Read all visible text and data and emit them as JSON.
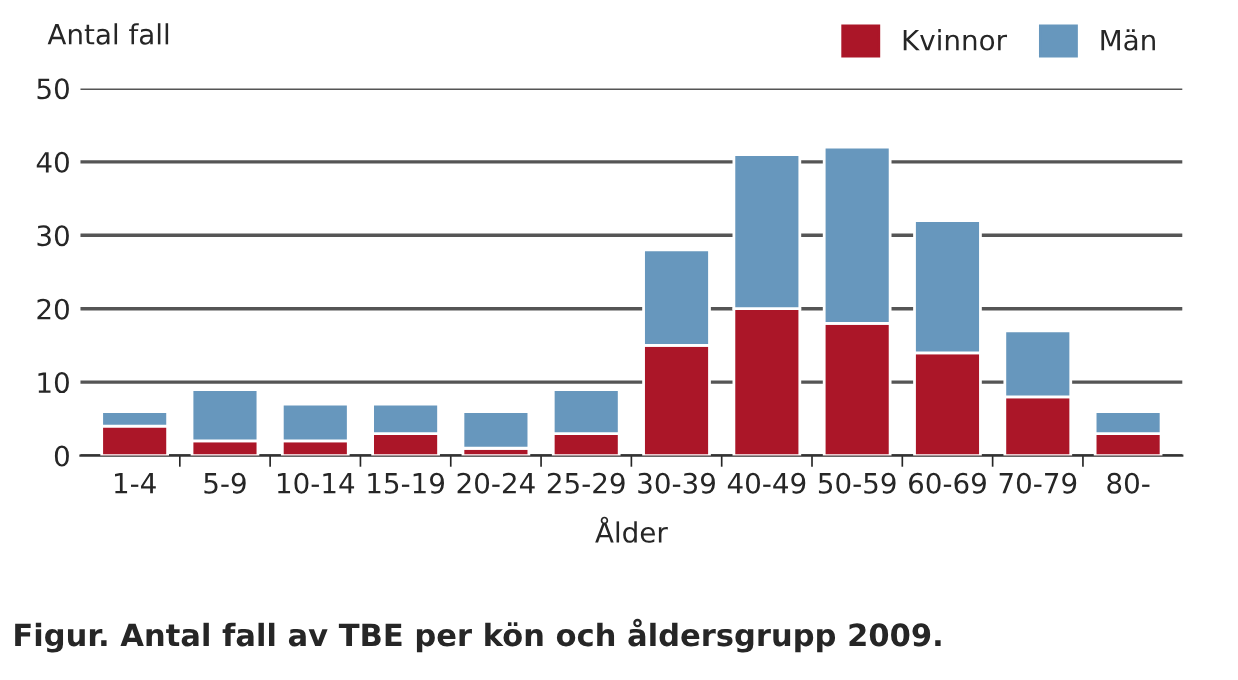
{
  "chart_data": {
    "type": "bar",
    "stacked": true,
    "ylabel": "Antal fall",
    "xlabel": "Ålder",
    "categories": [
      "1-4",
      "5-9",
      "10-14",
      "15-19",
      "20-24",
      "25-29",
      "30-39",
      "40-49",
      "50-59",
      "60-69",
      "70-79",
      "80-"
    ],
    "series": [
      {
        "name": "Kvinnor",
        "color": "#ab1628",
        "values": [
          4,
          2,
          2,
          3,
          1,
          3,
          15,
          20,
          18,
          14,
          8,
          3
        ]
      },
      {
        "name": "Män",
        "color": "#6797bd",
        "values": [
          2,
          7,
          5,
          4,
          5,
          6,
          13,
          21,
          24,
          18,
          9,
          3
        ]
      }
    ],
    "ylim": [
      0,
      50
    ],
    "yticks": [
      0,
      10,
      20,
      30,
      40,
      50
    ],
    "grid": "y",
    "legend": "top right",
    "annotations": [
      "Figur. Antal fall av TBE per kön och åldersgrupp 2009."
    ]
  }
}
